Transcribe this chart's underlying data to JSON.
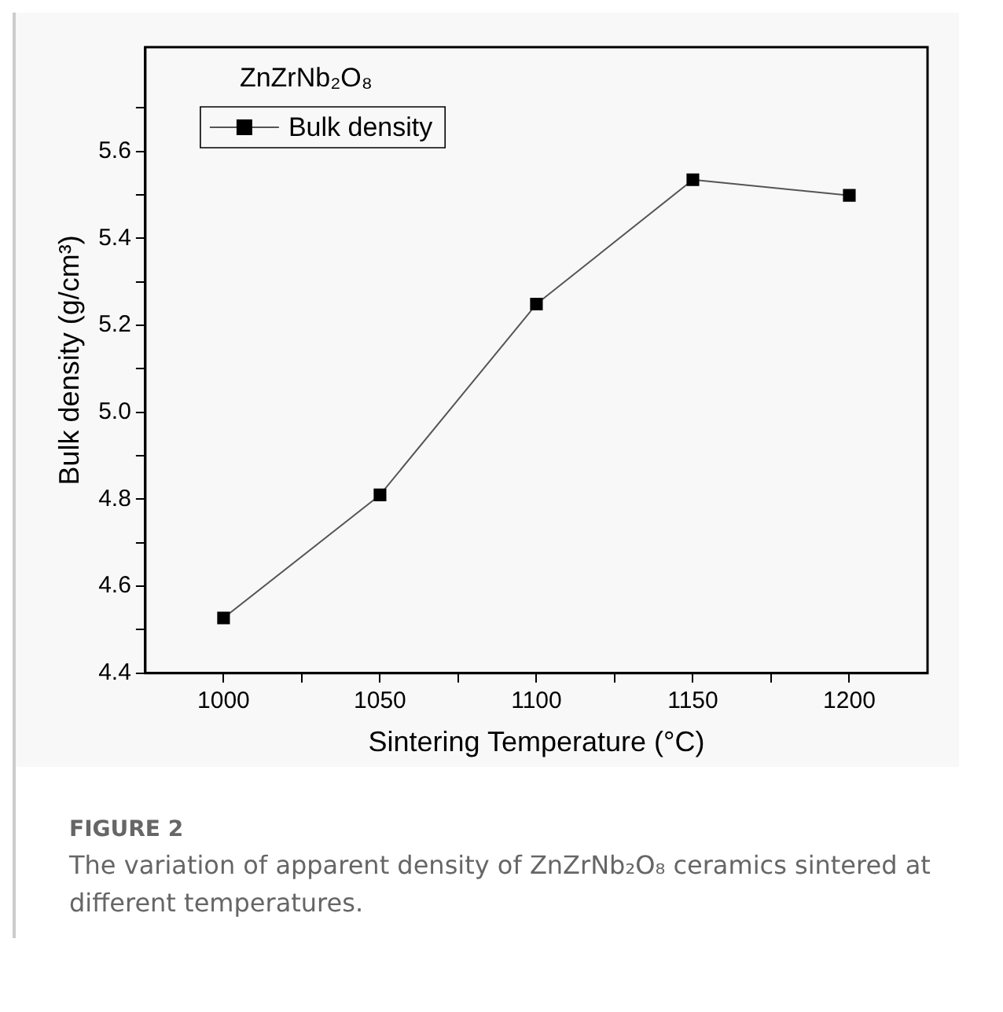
{
  "chart_data": {
    "type": "line",
    "xlabel": "Sintering Temperature (°C)",
    "ylabel": "Bulk density (g/cm³)",
    "x": [
      1000,
      1050,
      1100,
      1150,
      1200
    ],
    "series": [
      {
        "name": "Bulk density",
        "color": "#000000",
        "values": [
          4.527,
          4.81,
          5.249,
          5.535,
          5.499
        ]
      }
    ],
    "xlim": [
      975,
      1225
    ],
    "xticks": [
      1000,
      {
        "value": 1025,
        "label": null
      },
      1050,
      {
        "value": 1075,
        "label": null
      },
      1100,
      {
        "value": 1125,
        "label": null
      },
      1150,
      {
        "value": 1175,
        "label": null
      },
      1200
    ],
    "ylim": [
      4.4,
      5.84
    ],
    "yticks": [
      4.4,
      {
        "value": 4.5,
        "label": null
      },
      4.6,
      {
        "value": 4.7,
        "label": null
      },
      4.8,
      {
        "value": 4.9,
        "label": null
      },
      {
        "value": 5.0,
        "label": "5.0"
      },
      {
        "value": 5.1,
        "label": null
      },
      5.2,
      {
        "value": 5.3,
        "label": null
      },
      5.4,
      {
        "value": 5.5,
        "label": null
      },
      5.6,
      {
        "value": 5.7,
        "label": null
      }
    ],
    "annotations": [
      "ZnZrNb₂O₈",
      "FIGURE 2",
      "The variation of apparent density of ZnZrNb₂O₈ ceramics sintered at different temperatures."
    ],
    "legend": "top left",
    "marker": "square",
    "line_style": "solid",
    "grid": false
  }
}
